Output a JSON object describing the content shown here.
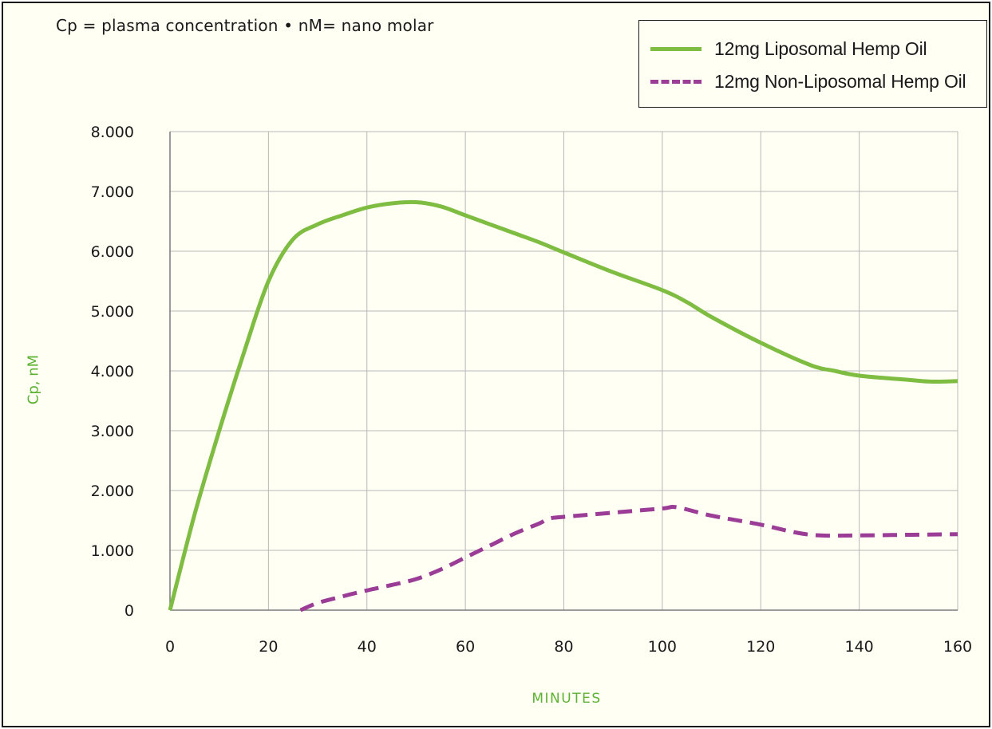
{
  "note": "Cp = plasma concentration  •  nM= nano molar",
  "colors": {
    "liposomal": "#7fbd42",
    "non_liposomal": "#9b3d96",
    "axis_label": "#5db233",
    "frame_bg": "#fffff4"
  },
  "chart_data": {
    "type": "line",
    "title": "",
    "xlabel": "MINUTES",
    "ylabel": "Cp, nM",
    "xlim": [
      0,
      160
    ],
    "ylim": [
      0,
      8
    ],
    "grid": true,
    "legend_position": "top-right",
    "x_ticks": [
      "0",
      "20",
      "40",
      "60",
      "80",
      "100",
      "120",
      "140",
      "160"
    ],
    "y_ticks": [
      "0",
      "1.000",
      "2.000",
      "3.000",
      "4.000",
      "5.000",
      "6.000",
      "7.000",
      "8.000"
    ],
    "series": [
      {
        "name": "12mg Liposomal Hemp Oil",
        "style": "solid",
        "color": "#7fbd42",
        "x": [
          0,
          5,
          10,
          15,
          20,
          25,
          30,
          35,
          40,
          45,
          50,
          55,
          60,
          65,
          70,
          75,
          80,
          90,
          100,
          105,
          110,
          120,
          130,
          135,
          140,
          150,
          155,
          160
        ],
        "y": [
          0,
          1.6,
          3.0,
          4.3,
          5.5,
          6.2,
          6.45,
          6.6,
          6.73,
          6.8,
          6.82,
          6.75,
          6.6,
          6.45,
          6.3,
          6.15,
          5.98,
          5.65,
          5.35,
          5.15,
          4.9,
          4.47,
          4.1,
          4.0,
          3.92,
          3.85,
          3.82,
          3.83
        ]
      },
      {
        "name": "12mg Non-Liposomal Hemp Oil",
        "style": "dashed",
        "color": "#9b3d96",
        "x": [
          26.5,
          30,
          35,
          40,
          45,
          50,
          55,
          60,
          65,
          70,
          75,
          77,
          80,
          90,
          100,
          103,
          110,
          120,
          127,
          132,
          140,
          150,
          160
        ],
        "y": [
          0,
          0.12,
          0.23,
          0.33,
          0.42,
          0.52,
          0.68,
          0.88,
          1.08,
          1.28,
          1.45,
          1.53,
          1.56,
          1.63,
          1.7,
          1.72,
          1.58,
          1.43,
          1.3,
          1.25,
          1.25,
          1.26,
          1.27
        ]
      }
    ]
  }
}
